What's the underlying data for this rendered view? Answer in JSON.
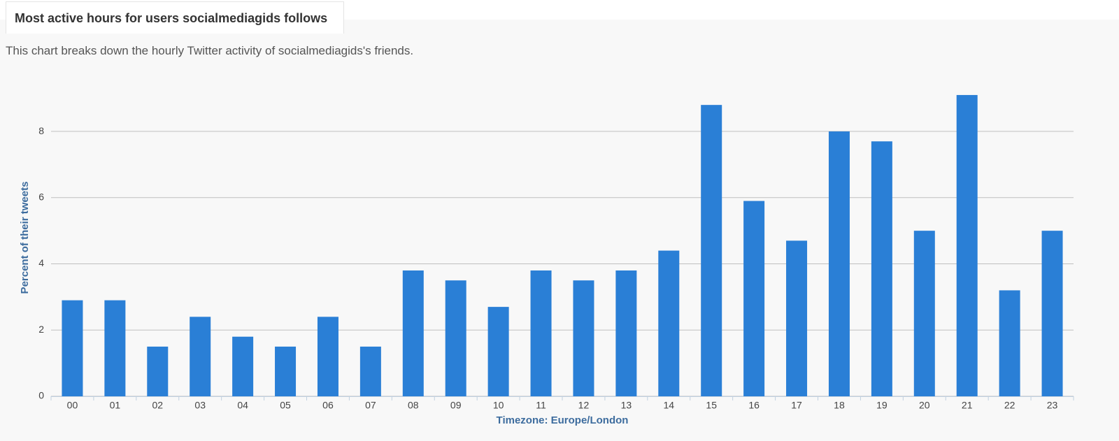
{
  "chart_data": {
    "type": "bar",
    "title": "Most active hours for users socialmediagids follows",
    "subtitle": "This chart breaks down the hourly Twitter activity of socialmediagids's friends.",
    "x_label": "Timezone: Europe/London",
    "y_label": "Percent of their tweets",
    "categories": [
      "00",
      "01",
      "02",
      "03",
      "04",
      "05",
      "06",
      "07",
      "08",
      "09",
      "10",
      "11",
      "12",
      "13",
      "14",
      "15",
      "16",
      "17",
      "18",
      "19",
      "20",
      "21",
      "22",
      "23"
    ],
    "values": [
      2.9,
      2.9,
      1.5,
      2.4,
      1.8,
      1.5,
      2.4,
      1.5,
      3.8,
      3.5,
      2.7,
      3.8,
      3.5,
      3.8,
      4.4,
      8.8,
      5.9,
      4.7,
      8.0,
      7.7,
      5.0,
      9.1,
      3.2,
      5.0
    ],
    "color": "#2a7fd6",
    "ylim": [
      0,
      9.5
    ],
    "yticks": [
      0,
      2,
      4,
      6,
      8
    ],
    "grid": true
  }
}
